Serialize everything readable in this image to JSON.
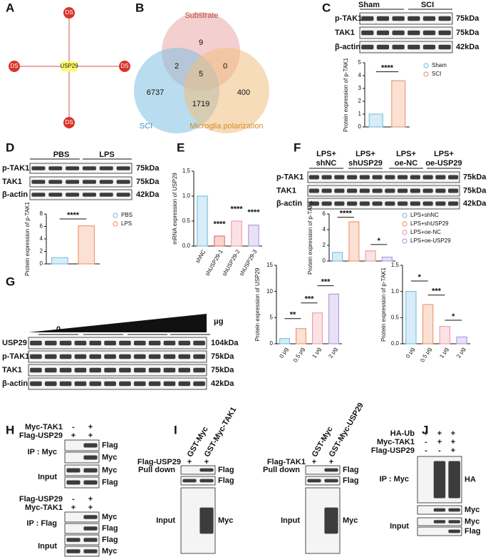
{
  "letters": [
    "A",
    "B",
    "C",
    "D",
    "E",
    "F",
    "G",
    "H",
    "I",
    "J"
  ],
  "network": {
    "center": "USP29",
    "nodes": [
      "DS",
      "DS",
      "DS",
      "DS"
    ]
  },
  "venn": {
    "sets": [
      "Substrate",
      "SCI",
      "Microglia polarization"
    ],
    "counts": [
      9,
      2,
      5,
      0,
      6737,
      1719,
      400
    ]
  },
  "blots": {
    "c": {
      "groups": [
        "Sham",
        "SCI"
      ],
      "rows": [
        "p-TAK1",
        "TAK1",
        "β-actin"
      ],
      "sizes": [
        "75kDa",
        "75kDa",
        "42kDa"
      ]
    },
    "d": {
      "groups": [
        "PBS",
        "LPS"
      ],
      "rows": [
        "p-TAK1",
        "TAK1",
        "β-actin"
      ],
      "sizes": [
        "75kDa",
        "75kDa",
        "42kDa"
      ]
    },
    "f": {
      "groups": [
        [
          "LPS+",
          "shNC"
        ],
        [
          "LPS+",
          "shUSP29"
        ],
        [
          "LPS+",
          "oe-NC"
        ],
        [
          "LPS+",
          "oe-USP29"
        ]
      ],
      "rows": [
        "p-TAK1",
        "TAK1",
        "β-actin"
      ],
      "sizes": [
        "75kDa",
        "75kDa",
        "42kDa"
      ]
    },
    "g": {
      "unit": "μg",
      "doses": [
        "0",
        "0.5",
        "1",
        "2"
      ],
      "rows": [
        "USP29",
        "p-TAK1",
        "TAK1",
        "β-actin"
      ],
      "sizes": [
        "104kDa",
        "75kDa",
        "75kDa",
        "42kDa"
      ]
    }
  },
  "h": {
    "top": {
      "conditions": [
        {
          "label": "Myc-TAK1",
          "marks": [
            "-",
            "+"
          ]
        },
        {
          "label": "Flag-USP29",
          "marks": [
            "+",
            "+"
          ]
        }
      ],
      "ip": "IP : Myc",
      "input": "Input",
      "rows": [
        "Flag",
        "Myc",
        "Myc",
        "Flag"
      ]
    },
    "bottom": {
      "conditions": [
        {
          "label": "Flag-USP29",
          "marks": [
            "-",
            "+"
          ]
        },
        {
          "label": "Myc-TAK1",
          "marks": [
            "+",
            "+"
          ]
        }
      ],
      "ip": "IP : Flag",
      "input": "Input",
      "rows": [
        "Myc",
        "Flag",
        "Flag",
        "Myc"
      ]
    }
  },
  "i": [
    {
      "lanes": [
        "GST-Myc",
        "GST-Myc-TAK1"
      ],
      "condition": {
        "label": "Flag-USP29",
        "marks": [
          "+",
          "+"
        ]
      },
      "pulldown": "Pull down",
      "input": "Input",
      "rows": [
        "Flag",
        "Flag",
        "Myc"
      ]
    },
    {
      "lanes": [
        "GST-Myc",
        "GST-Myc-USP29"
      ],
      "condition": {
        "label": "Flag-TAK1",
        "marks": [
          "+",
          "+"
        ]
      },
      "pulldown": "Pull down",
      "input": "Input",
      "rows": [
        "Flag",
        "Flag",
        "Myc"
      ]
    }
  ],
  "j": {
    "conditions": [
      {
        "label": "HA-Ub",
        "marks": [
          "+",
          "+",
          "+"
        ]
      },
      {
        "label": "Myc-TAK1",
        "marks": [
          "-",
          "+",
          "+"
        ]
      },
      {
        "label": "Flag-USP29",
        "marks": [
          "-",
          "-",
          "+"
        ]
      }
    ],
    "ip": "IP : Myc",
    "input": "Input",
    "rows": [
      "HA",
      "Myc",
      "Myc",
      "Flag"
    ]
  },
  "chart_data": [
    {
      "type": "bar",
      "ylabel": "Protein expression of p-TAK1",
      "series": [
        {
          "name": "Sham",
          "color": "#7ec3e6",
          "values": [
            1.0
          ]
        },
        {
          "name": "SCI",
          "color": "#f09a72",
          "values": [
            3.6
          ]
        }
      ],
      "ylim": [
        0,
        5
      ],
      "yticks": [
        0,
        1,
        2,
        3,
        4,
        5
      ],
      "annotations": [
        "****"
      ]
    },
    {
      "type": "bar",
      "ylabel": "Protein expression of p-TAK1",
      "series": [
        {
          "name": "PBS",
          "color": "#7ec3e6",
          "values": [
            1.0
          ]
        },
        {
          "name": "LPS",
          "color": "#f09a72",
          "values": [
            6.1
          ]
        }
      ],
      "ylim": [
        0,
        8
      ],
      "yticks": [
        0,
        2,
        4,
        6,
        8
      ],
      "annotations": [
        "****"
      ]
    },
    {
      "type": "bar",
      "ylabel": "mRNA expression of USP29",
      "categories": [
        "shNC",
        "shUSP29-1",
        "shUSP29-2",
        "shUSP29-3"
      ],
      "values": [
        1.0,
        0.2,
        0.5,
        0.42
      ],
      "colors": [
        "#7ec3e6",
        "#e8746a",
        "#f2a0a8",
        "#b79be0"
      ],
      "ylim": [
        0,
        1.5
      ],
      "yticks": [
        {
          "value": 0,
          "label": "0.0"
        },
        {
          "value": 0.5,
          "label": "0.5"
        },
        {
          "value": 1,
          "label": "1.0"
        },
        {
          "value": 1.5,
          "label": "1.5"
        }
      ],
      "annotations": [
        "****",
        "****",
        "****"
      ]
    },
    {
      "type": "bar",
      "ylabel": "Protein expression of p-TAK1",
      "series": [
        {
          "name": "LPS+shNC",
          "color": "#7ec3e6",
          "values": [
            1.1
          ]
        },
        {
          "name": "LPS+shUSP29",
          "color": "#f09a72",
          "values": [
            5.0
          ]
        },
        {
          "name": "LPS+oe-NC",
          "color": "#f2a0a8",
          "values": [
            1.3
          ]
        },
        {
          "name": "LPS+oe-USP29",
          "color": "#b79be0",
          "values": [
            0.5
          ]
        }
      ],
      "ylim": [
        0,
        6
      ],
      "yticks": [
        0,
        2,
        4,
        6
      ],
      "annotations": [
        "****",
        "*"
      ]
    },
    {
      "type": "bar",
      "ylabel": "Protein expression of USP29",
      "categories": [
        "0 μg",
        "0.5 μg",
        "1 μg",
        "2 μg"
      ],
      "values": [
        1.0,
        2.9,
        5.9,
        9.5
      ],
      "colors": [
        "#7ec3e6",
        "#f09a72",
        "#f2a0a8",
        "#b79be0"
      ],
      "ylim": [
        0,
        15
      ],
      "yticks": [
        0,
        5,
        10,
        15
      ],
      "annotations": [
        "**",
        "***",
        "***"
      ]
    },
    {
      "type": "bar",
      "ylabel": "Protein expression of p-TAK1",
      "categories": [
        "0 μg",
        "0.5 μg",
        "1 μg",
        "2 μg"
      ],
      "values": [
        1.0,
        0.75,
        0.33,
        0.13
      ],
      "colors": [
        "#7ec3e6",
        "#f09a72",
        "#f2a0a8",
        "#b79be0"
      ],
      "ylim": [
        0,
        1.5
      ],
      "yticks": [
        {
          "value": 0,
          "label": "0.0"
        },
        {
          "value": 0.5,
          "label": "0.5"
        },
        {
          "value": 1,
          "label": "1.0"
        },
        {
          "value": 1.5,
          "label": "1.5"
        }
      ],
      "annotations": [
        "*",
        "***",
        "*"
      ]
    }
  ]
}
